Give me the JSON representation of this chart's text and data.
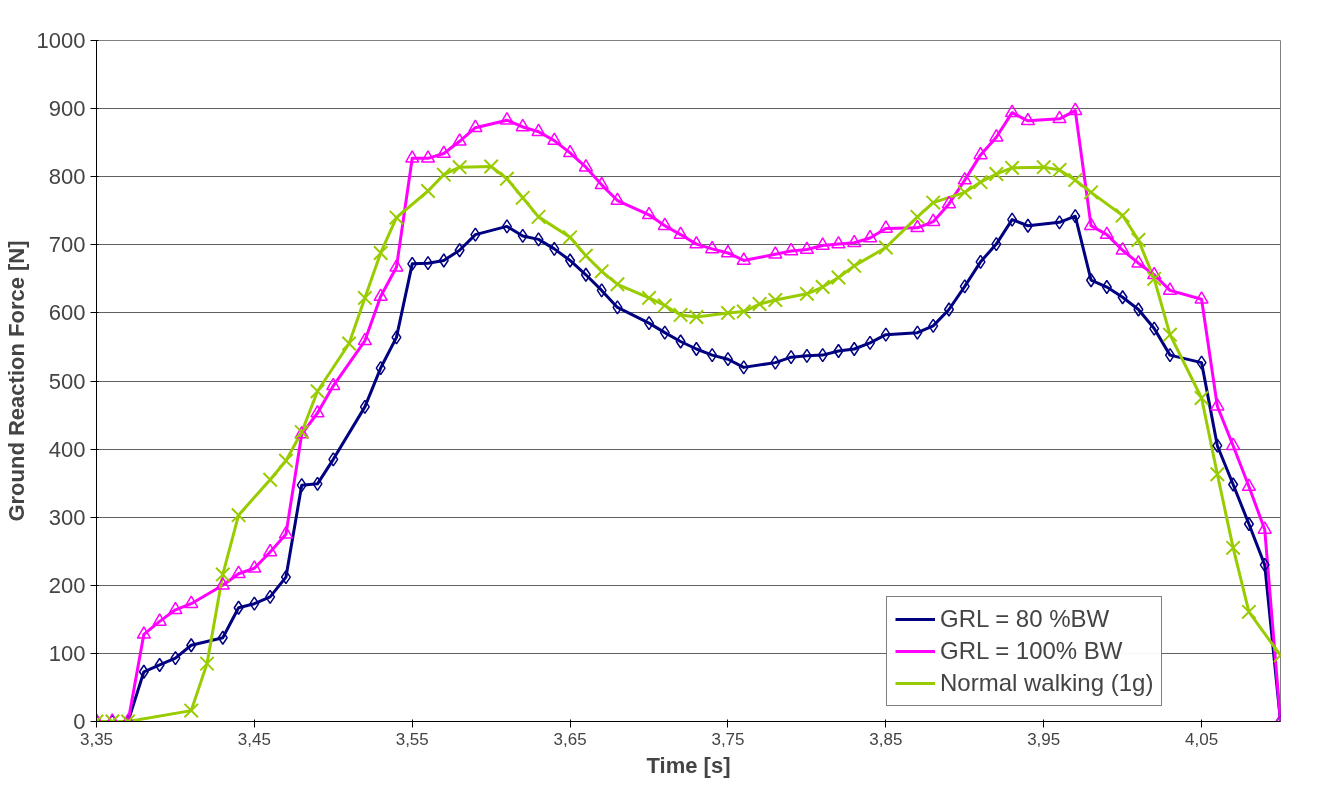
{
  "chart_data": {
    "type": "line",
    "xlabel": "Time [s]",
    "ylabel": "Ground Reaction Force [N]",
    "xlim": [
      3.35,
      4.1
    ],
    "ylim": [
      0,
      1000
    ],
    "xticks": [
      {
        "value": 3.35,
        "label": "3,35"
      },
      {
        "value": 3.45,
        "label": "3,45"
      },
      {
        "value": 3.55,
        "label": "3,55"
      },
      {
        "value": 3.65,
        "label": "3,65"
      },
      {
        "value": 3.75,
        "label": "3,75"
      },
      {
        "value": 3.85,
        "label": "3,85"
      },
      {
        "value": 3.95,
        "label": "3,95"
      },
      {
        "value": 4.05,
        "label": "4,05"
      }
    ],
    "yticks": [
      0,
      100,
      200,
      300,
      400,
      500,
      600,
      700,
      800,
      900,
      1000
    ],
    "grid": "y",
    "legend": "bottom right",
    "line_style": "solid",
    "series": [
      {
        "name": "GRL = 80 %BW",
        "color": "#000080",
        "marker": "diamond",
        "x": [
          3.35,
          3.36,
          3.37,
          3.38,
          3.39,
          3.4,
          3.41,
          3.43,
          3.44,
          3.45,
          3.46,
          3.47,
          3.48,
          3.49,
          3.5,
          3.52,
          3.53,
          3.54,
          3.55,
          3.56,
          3.57,
          3.58,
          3.59,
          3.61,
          3.62,
          3.63,
          3.64,
          3.65,
          3.66,
          3.67,
          3.68,
          3.7,
          3.71,
          3.72,
          3.73,
          3.74,
          3.75,
          3.76,
          3.78,
          3.79,
          3.8,
          3.81,
          3.82,
          3.83,
          3.84,
          3.85,
          3.87,
          3.88,
          3.89,
          3.9,
          3.91,
          3.92,
          3.93,
          3.94,
          3.96,
          3.97,
          3.98,
          3.99,
          4.0,
          4.01,
          4.02,
          4.03,
          4.05,
          4.06,
          4.07,
          4.08,
          4.09,
          4.1
        ],
        "values": [
          0,
          0,
          0,
          73,
          83,
          93,
          112,
          123,
          167,
          173,
          183,
          212,
          347,
          349,
          385,
          462,
          519,
          564,
          672,
          673,
          677,
          692,
          715,
          727,
          713,
          708,
          694,
          677,
          656,
          633,
          608,
          585,
          571,
          558,
          547,
          538,
          532,
          520,
          527,
          535,
          537,
          538,
          544,
          547,
          556,
          568,
          571,
          581,
          605,
          639,
          675,
          701,
          737,
          728,
          733,
          742,
          648,
          638,
          623,
          605,
          577,
          538,
          527,
          405,
          348,
          290,
          230,
          0
        ]
      },
      {
        "name": "GRL = 100% BW",
        "color": "#ff00ff",
        "marker": "triangle",
        "x": [
          3.35,
          3.36,
          3.37,
          3.38,
          3.39,
          3.4,
          3.41,
          3.43,
          3.44,
          3.45,
          3.46,
          3.47,
          3.48,
          3.49,
          3.5,
          3.52,
          3.53,
          3.54,
          3.55,
          3.56,
          3.57,
          3.58,
          3.59,
          3.61,
          3.62,
          3.63,
          3.64,
          3.65,
          3.66,
          3.67,
          3.68,
          3.7,
          3.71,
          3.72,
          3.73,
          3.74,
          3.75,
          3.76,
          3.78,
          3.79,
          3.8,
          3.81,
          3.82,
          3.83,
          3.84,
          3.85,
          3.87,
          3.88,
          3.89,
          3.9,
          3.91,
          3.92,
          3.93,
          3.94,
          3.96,
          3.97,
          3.98,
          3.99,
          4.0,
          4.01,
          4.02,
          4.03,
          4.05,
          4.06,
          4.07,
          4.08,
          4.09,
          4.1
        ],
        "values": [
          0,
          0,
          0,
          128,
          147,
          164,
          173,
          200,
          217,
          225,
          249,
          275,
          422,
          453,
          493,
          559,
          624,
          667,
          827,
          827,
          834,
          852,
          872,
          883,
          873,
          866,
          853,
          835,
          814,
          788,
          765,
          744,
          728,
          715,
          701,
          694,
          688,
          677,
          686,
          691,
          693,
          699,
          701,
          703,
          710,
          724,
          725,
          734,
          760,
          795,
          832,
          858,
          894,
          882,
          885,
          897,
          728,
          715,
          692,
          673,
          656,
          633,
          620,
          463,
          405,
          345,
          282,
          0
        ]
      },
      {
        "name": "Normal walking (1g)",
        "color": "#99cc00",
        "marker": "cross",
        "x": [
          3.35,
          3.36,
          3.37,
          3.41,
          3.42,
          3.43,
          3.44,
          3.46,
          3.47,
          3.48,
          3.49,
          3.51,
          3.52,
          3.53,
          3.54,
          3.56,
          3.57,
          3.58,
          3.6,
          3.61,
          3.62,
          3.63,
          3.65,
          3.66,
          3.67,
          3.68,
          3.7,
          3.71,
          3.72,
          3.73,
          3.75,
          3.76,
          3.77,
          3.78,
          3.8,
          3.81,
          3.82,
          3.83,
          3.85,
          3.87,
          3.88,
          3.9,
          3.91,
          3.92,
          3.93,
          3.95,
          3.96,
          3.97,
          3.98,
          4.0,
          4.01,
          4.02,
          4.03,
          4.05,
          4.06,
          4.07,
          4.08,
          4.1
        ],
        "values": [
          0,
          0,
          0,
          16,
          85,
          216,
          303,
          355,
          383,
          425,
          485,
          555,
          622,
          688,
          740,
          779,
          803,
          814,
          815,
          797,
          769,
          741,
          711,
          684,
          661,
          642,
          622,
          611,
          597,
          594,
          600,
          602,
          613,
          619,
          628,
          638,
          652,
          669,
          696,
          741,
          762,
          777,
          792,
          804,
          813,
          814,
          810,
          795,
          777,
          743,
          707,
          650,
          568,
          475,
          363,
          255,
          161,
          97
        ]
      }
    ]
  }
}
